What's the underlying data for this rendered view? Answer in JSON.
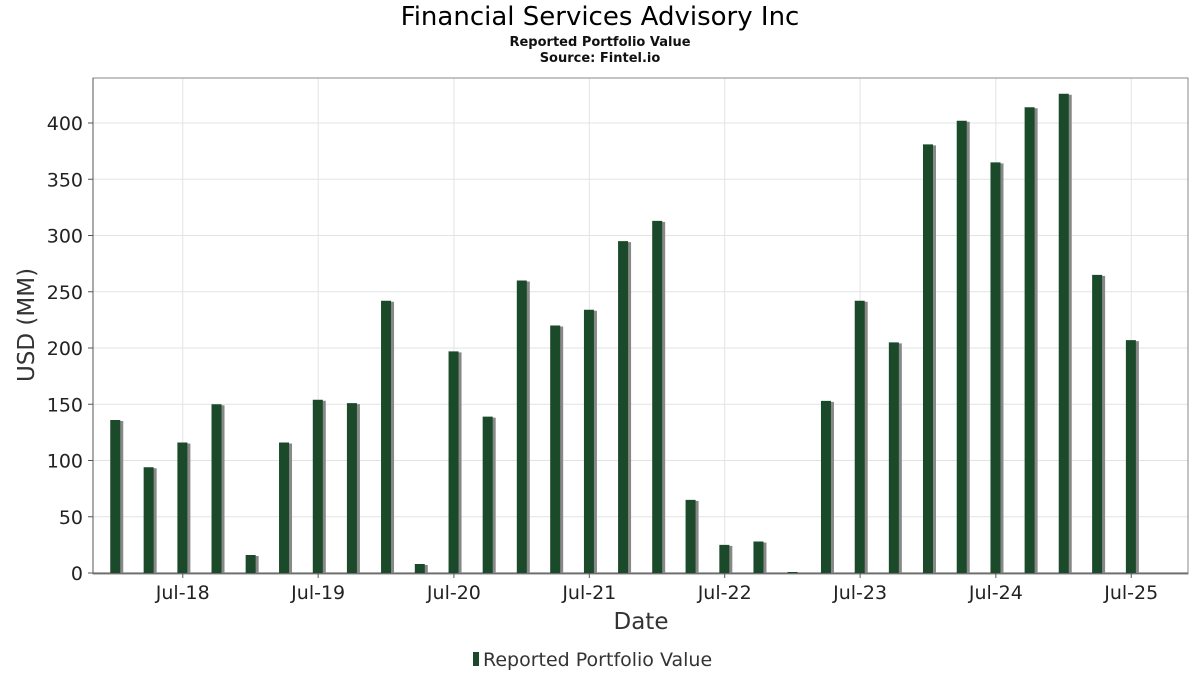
{
  "chart_data": {
    "type": "bar",
    "title": "Financial Services Advisory Inc",
    "subtitle": "Reported Portfolio Value",
    "source": "Source: Fintel.io",
    "xlabel": "Date",
    "ylabel": "USD (MM)",
    "ylim": [
      0,
      440
    ],
    "yticks": [
      0,
      50,
      100,
      150,
      200,
      250,
      300,
      350,
      400
    ],
    "xlim": [
      "2017-11-01",
      "2025-12-01"
    ],
    "xticks": [
      {
        "label": "Jul-18",
        "date": "2018-07-01"
      },
      {
        "label": "Jul-19",
        "date": "2019-07-01"
      },
      {
        "label": "Jul-20",
        "date": "2020-07-01"
      },
      {
        "label": "Jul-21",
        "date": "2021-07-01"
      },
      {
        "label": "Jul-22",
        "date": "2022-07-01"
      },
      {
        "label": "Jul-23",
        "date": "2023-07-01"
      },
      {
        "label": "Jul-24",
        "date": "2024-07-01"
      },
      {
        "label": "Jul-25",
        "date": "2025-07-01"
      }
    ],
    "grid": true,
    "legend_position": "bottom",
    "bar_color": "#1b4a2a",
    "shadow_color": "#888888",
    "series": [
      {
        "name": "Reported Portfolio Value",
        "x": [
          "2017-12-31",
          "2018-03-31",
          "2018-06-30",
          "2018-09-30",
          "2018-12-31",
          "2019-03-31",
          "2019-06-30",
          "2019-09-30",
          "2019-12-31",
          "2020-03-31",
          "2020-06-30",
          "2020-09-30",
          "2020-12-31",
          "2021-03-31",
          "2021-06-30",
          "2021-09-30",
          "2021-12-31",
          "2022-03-31",
          "2022-06-30",
          "2022-09-30",
          "2022-12-31",
          "2023-03-31",
          "2023-06-30",
          "2023-09-30",
          "2023-12-31",
          "2024-03-31",
          "2024-06-30",
          "2024-09-30",
          "2024-12-31",
          "2025-03-31",
          "2025-06-30"
        ],
        "values": [
          136,
          94,
          116,
          150,
          16,
          116,
          154,
          151,
          242,
          8,
          197,
          139,
          260,
          220,
          234,
          295,
          313,
          65,
          25,
          28,
          0.5,
          153,
          242,
          205,
          381,
          402,
          365,
          414,
          426,
          265,
          207
        ]
      }
    ]
  }
}
